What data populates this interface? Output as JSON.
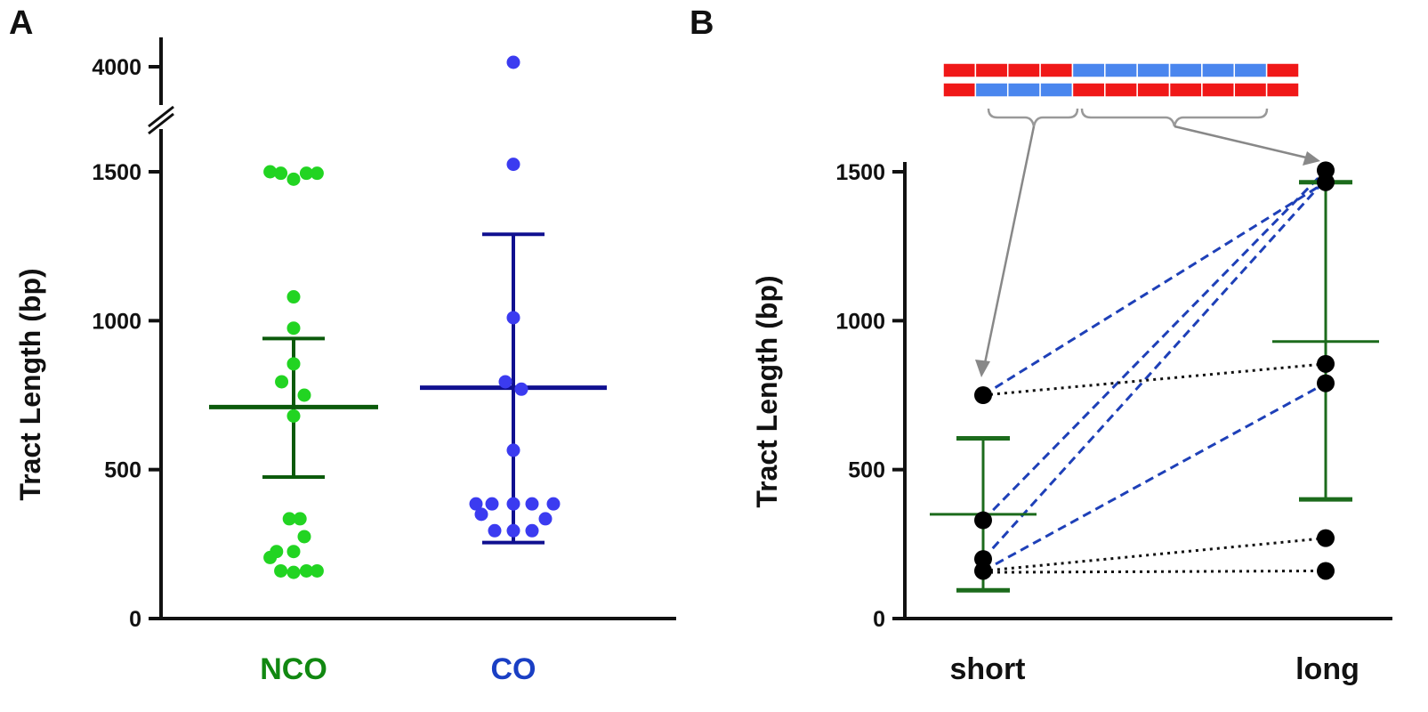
{
  "colors": {
    "nco_points": "#22d422",
    "nco_stats": "#0b5a0b",
    "nco_label": "#118811",
    "co_points": "#3b3bf0",
    "co_stats": "#101090",
    "co_label": "#1a3fc4",
    "paired_stats": "#1c6b1c",
    "dashed_line": "#1e40b8",
    "dotted_line": "#111111",
    "point_b": "#000000",
    "tract_red": "#f01818",
    "tract_blue": "#4a86ee",
    "bracket": "#999999"
  },
  "chart_data": [
    {
      "type": "scatter",
      "panel_label": "A",
      "ylabel": "Tract Length (bp)",
      "yticks": [
        0,
        500,
        1000,
        1500,
        4000
      ],
      "ylim": [
        0,
        4100
      ],
      "y_axis_break": [
        1600,
        3900
      ],
      "categories": [
        "NCO",
        "CO"
      ],
      "series": [
        {
          "name": "NCO",
          "points": [
            {
              "jitter": -0.55,
              "y": 1500
            },
            {
              "jitter": -0.3,
              "y": 1495
            },
            {
              "jitter": 0.0,
              "y": 1475
            },
            {
              "jitter": 0.3,
              "y": 1495
            },
            {
              "jitter": 0.55,
              "y": 1495
            },
            {
              "jitter": 0.0,
              "y": 1080
            },
            {
              "jitter": 0.0,
              "y": 975
            },
            {
              "jitter": 0.0,
              "y": 855
            },
            {
              "jitter": -0.28,
              "y": 795
            },
            {
              "jitter": 0.25,
              "y": 750
            },
            {
              "jitter": 0.0,
              "y": 680
            },
            {
              "jitter": -0.1,
              "y": 335
            },
            {
              "jitter": 0.15,
              "y": 335
            },
            {
              "jitter": 0.25,
              "y": 275
            },
            {
              "jitter": -0.4,
              "y": 225
            },
            {
              "jitter": 0.0,
              "y": 225
            },
            {
              "jitter": -0.55,
              "y": 205
            },
            {
              "jitter": -0.3,
              "y": 160
            },
            {
              "jitter": 0.0,
              "y": 155
            },
            {
              "jitter": 0.3,
              "y": 160
            },
            {
              "jitter": 0.55,
              "y": 160
            }
          ],
          "mean": 710,
          "err_low": 475,
          "err_high": 940
        },
        {
          "name": "CO",
          "points": [
            {
              "jitter": 0.0,
              "y": 4050
            },
            {
              "jitter": 0.0,
              "y": 1525
            },
            {
              "jitter": 0.0,
              "y": 1010
            },
            {
              "jitter": -0.15,
              "y": 795
            },
            {
              "jitter": 0.15,
              "y": 770
            },
            {
              "jitter": 0.0,
              "y": 565
            },
            {
              "jitter": -0.7,
              "y": 385
            },
            {
              "jitter": -0.4,
              "y": 385
            },
            {
              "jitter": 0.0,
              "y": 385
            },
            {
              "jitter": 0.35,
              "y": 385
            },
            {
              "jitter": 0.75,
              "y": 385
            },
            {
              "jitter": -0.6,
              "y": 350
            },
            {
              "jitter": 0.6,
              "y": 335
            },
            {
              "jitter": -0.35,
              "y": 295
            },
            {
              "jitter": 0.0,
              "y": 295
            },
            {
              "jitter": 0.35,
              "y": 295
            }
          ],
          "mean": 775,
          "err_low": 255,
          "err_high": 1290
        }
      ]
    },
    {
      "type": "line",
      "panel_label": "B",
      "ylabel": "Tract Length (bp)",
      "yticks": [
        0,
        500,
        1000,
        1500
      ],
      "ylim": [
        0,
        1530
      ],
      "categories": [
        "short",
        "long"
      ],
      "pairs": [
        {
          "short": 750,
          "long": 1465,
          "style": "dashed"
        },
        {
          "short": 330,
          "long": 1505,
          "style": "dashed"
        },
        {
          "short": 200,
          "long": 1475,
          "style": "dashed"
        },
        {
          "short": 160,
          "long": 790,
          "style": "dashed"
        },
        {
          "short": 750,
          "long": 855,
          "style": "dotted"
        },
        {
          "short": 160,
          "long": 270,
          "style": "dotted"
        },
        {
          "short": 155,
          "long": 160,
          "style": "dotted"
        }
      ],
      "short_points": [
        750,
        330,
        200,
        160
      ],
      "long_points": [
        1505,
        1465,
        855,
        790,
        270,
        160
      ],
      "stats": {
        "short": {
          "mean": 350,
          "err_low": 95,
          "err_high": 605
        },
        "long": {
          "mean": 930,
          "err_low": 400,
          "err_high": 1465
        }
      },
      "tract_diagram": {
        "top_strand": [
          "red",
          "red",
          "red",
          "red",
          "blue",
          "blue",
          "blue",
          "blue",
          "blue",
          "blue",
          "red"
        ],
        "bottom_strand": [
          "red",
          "blue",
          "blue",
          "blue",
          "red",
          "red",
          "red",
          "red",
          "red",
          "red",
          "red"
        ]
      }
    }
  ]
}
